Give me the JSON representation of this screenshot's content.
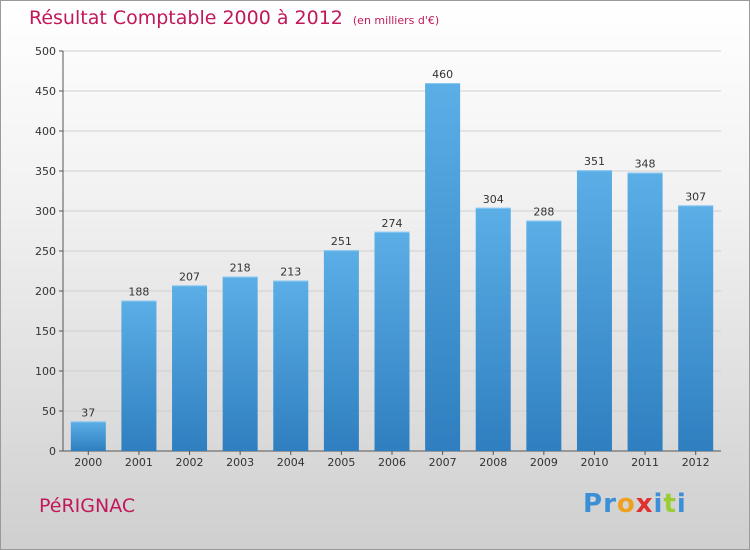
{
  "chart_data": {
    "type": "bar",
    "title": "Résultat Comptable 2000 à 2012",
    "subtitle": "(en milliers d'€)",
    "categories": [
      "2000",
      "2001",
      "2002",
      "2003",
      "2004",
      "2005",
      "2006",
      "2007",
      "2008",
      "2009",
      "2010",
      "2011",
      "2012"
    ],
    "values": [
      37,
      188,
      207,
      218,
      213,
      251,
      274,
      460,
      304,
      288,
      351,
      348,
      307
    ],
    "ylim": [
      0,
      500
    ],
    "yticks": [
      0,
      50,
      100,
      150,
      200,
      250,
      300,
      350,
      400,
      450,
      500
    ],
    "grid": true,
    "xlabel": "",
    "ylabel": ""
  },
  "footer": {
    "commune": "PéRIGNAC",
    "brand_letters": [
      "P",
      "r",
      "o",
      "x",
      "i",
      "t",
      "i"
    ]
  },
  "colors": {
    "title": "#c2185b",
    "bar_top": "#5baee6",
    "bar_bottom": "#2f7fc0",
    "brand": [
      "#3b8fd6",
      "#3b8fd6",
      "#f0a020",
      "#e03030",
      "#3b8fd6",
      "#9acd32",
      "#3b8fd6"
    ]
  }
}
